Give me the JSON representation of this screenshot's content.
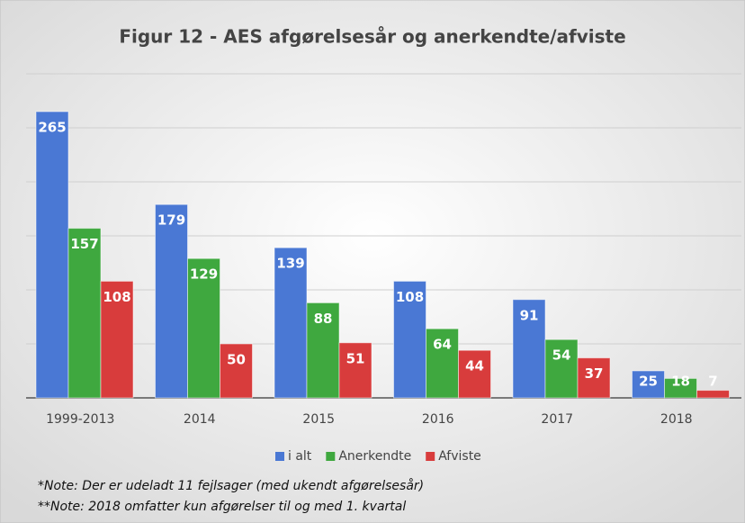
{
  "chart_data": {
    "type": "bar",
    "title": "Figur 12 - AES afgørelsesår og anerkendte/afviste",
    "categories": [
      "1999-2013",
      "2014",
      "2015",
      "2016",
      "2017",
      "2018"
    ],
    "series": [
      {
        "name": "i alt",
        "color": "#4a78d4",
        "values": [
          265,
          179,
          139,
          108,
          91,
          25
        ]
      },
      {
        "name": "Anerkendte",
        "color": "#3fa83f",
        "values": [
          157,
          129,
          88,
          64,
          54,
          18
        ]
      },
      {
        "name": "Afviste",
        "color": "#d83c3c",
        "values": [
          108,
          50,
          51,
          44,
          37,
          7
        ]
      }
    ],
    "ylim": [
      0,
      300
    ],
    "yticks": [
      0,
      50,
      100,
      150,
      200,
      250,
      300
    ],
    "grid": true,
    "notes": [
      "*Note: Der er udeladt 11 fejlsager (med ukendt afgørelsesår)",
      "**Note: 2018 omfatter kun afgørelser til og med 1. kvartal"
    ]
  }
}
